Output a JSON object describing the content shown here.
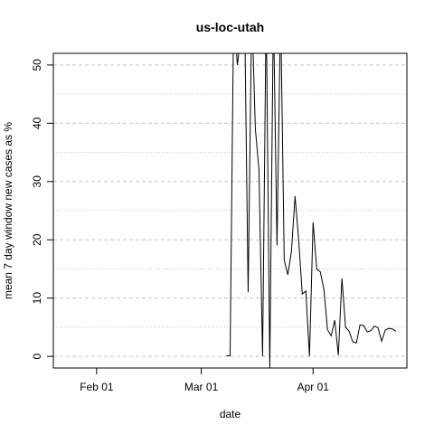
{
  "chart_data": {
    "type": "line",
    "title": "us-loc-utah",
    "xlabel": "date",
    "ylabel": "mean  7  day window new cases as %",
    "x_ticks": [
      "Feb 01",
      "Mar 01",
      "Apr 01"
    ],
    "y_ticks": [
      0,
      10,
      20,
      30,
      40,
      50
    ],
    "xlim": [
      "2020-01-20",
      "2020-04-27"
    ],
    "ylim": [
      -2,
      52
    ],
    "grid": true,
    "series": [
      {
        "x": [
          "2020-03-08",
          "2020-03-09",
          "2020-03-10",
          "2020-03-11",
          "2020-03-12",
          "2020-03-13",
          "2020-03-14",
          "2020-03-15",
          "2020-03-16",
          "2020-03-17",
          "2020-03-18",
          "2020-03-19",
          "2020-03-20",
          "2020-03-21",
          "2020-03-22",
          "2020-03-23",
          "2020-03-24",
          "2020-03-25",
          "2020-03-26",
          "2020-03-27",
          "2020-03-28",
          "2020-03-29",
          "2020-03-30",
          "2020-03-31",
          "2020-04-01",
          "2020-04-02",
          "2020-04-03",
          "2020-04-04",
          "2020-04-05",
          "2020-04-06",
          "2020-04-07",
          "2020-04-08",
          "2020-04-09",
          "2020-04-10",
          "2020-04-11",
          "2020-04-12",
          "2020-04-13",
          "2020-04-14",
          "2020-04-15",
          "2020-04-16",
          "2020-04-17",
          "2020-04-18",
          "2020-04-19",
          "2020-04-20",
          "2020-04-21",
          "2020-04-22",
          "2020-04-23",
          "2020-04-24"
        ],
        "values": [
          0.1,
          0.1,
          60,
          50,
          55,
          60,
          11,
          60,
          39,
          32,
          0,
          60,
          -2,
          60,
          19,
          60,
          16.5,
          14,
          18,
          27.5,
          20,
          10.7,
          11.2,
          0,
          23,
          15,
          14.5,
          11.5,
          4.6,
          3.5,
          6.2,
          0.2,
          13.4,
          5,
          4.3,
          2.5,
          2.3,
          5.4,
          5.3,
          4.2,
          4.4,
          5.2,
          4.9,
          2.6,
          4.5,
          4.8,
          4.7,
          4.3
        ]
      }
    ]
  }
}
